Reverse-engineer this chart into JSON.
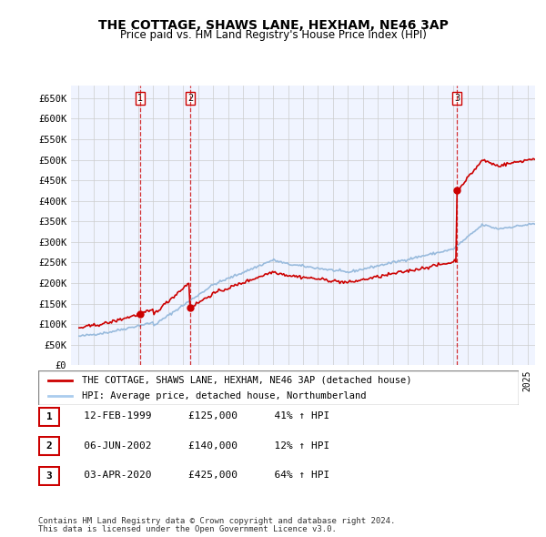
{
  "title": "THE COTTAGE, SHAWS LANE, HEXHAM, NE46 3AP",
  "subtitle": "Price paid vs. HM Land Registry's House Price Index (HPI)",
  "ylabel_ticks": [
    "£0",
    "£50K",
    "£100K",
    "£150K",
    "£200K",
    "£250K",
    "£300K",
    "£350K",
    "£400K",
    "£450K",
    "£500K",
    "£550K",
    "£600K",
    "£650K"
  ],
  "ytick_vals": [
    0,
    50000,
    100000,
    150000,
    200000,
    250000,
    300000,
    350000,
    400000,
    450000,
    500000,
    550000,
    600000,
    650000
  ],
  "x_start_year": 1995,
  "x_end_year": 2025,
  "sales": [
    {
      "date": "1999-02-12",
      "price": 125000,
      "label": "1"
    },
    {
      "date": "2002-06-06",
      "price": 140000,
      "label": "2"
    },
    {
      "date": "2020-04-03",
      "price": 425000,
      "label": "3"
    }
  ],
  "table_rows": [
    {
      "num": "1",
      "date": "12-FEB-1999",
      "price": "£125,000",
      "change": "41% ↑ HPI"
    },
    {
      "num": "2",
      "date": "06-JUN-2002",
      "price": "£140,000",
      "change": "12% ↑ HPI"
    },
    {
      "num": "3",
      "date": "03-APR-2020",
      "price": "£425,000",
      "change": "64% ↑ HPI"
    }
  ],
  "legend_entries": [
    {
      "label": "THE COTTAGE, SHAWS LANE, HEXHAM, NE46 3AP (detached house)",
      "color": "#cc0000"
    },
    {
      "label": "HPI: Average price, detached house, Northumberland",
      "color": "#aaccee"
    }
  ],
  "footnote1": "Contains HM Land Registry data © Crown copyright and database right 2024.",
  "footnote2": "This data is licensed under the Open Government Licence v3.0.",
  "red_color": "#cc0000",
  "blue_color": "#99bbdd",
  "dashed_color": "#cc0000",
  "bg_color": "#f0f4ff",
  "grid_color": "#cccccc",
  "sale_marker_color": "#cc0000",
  "sale_line_color": "#dd2222"
}
